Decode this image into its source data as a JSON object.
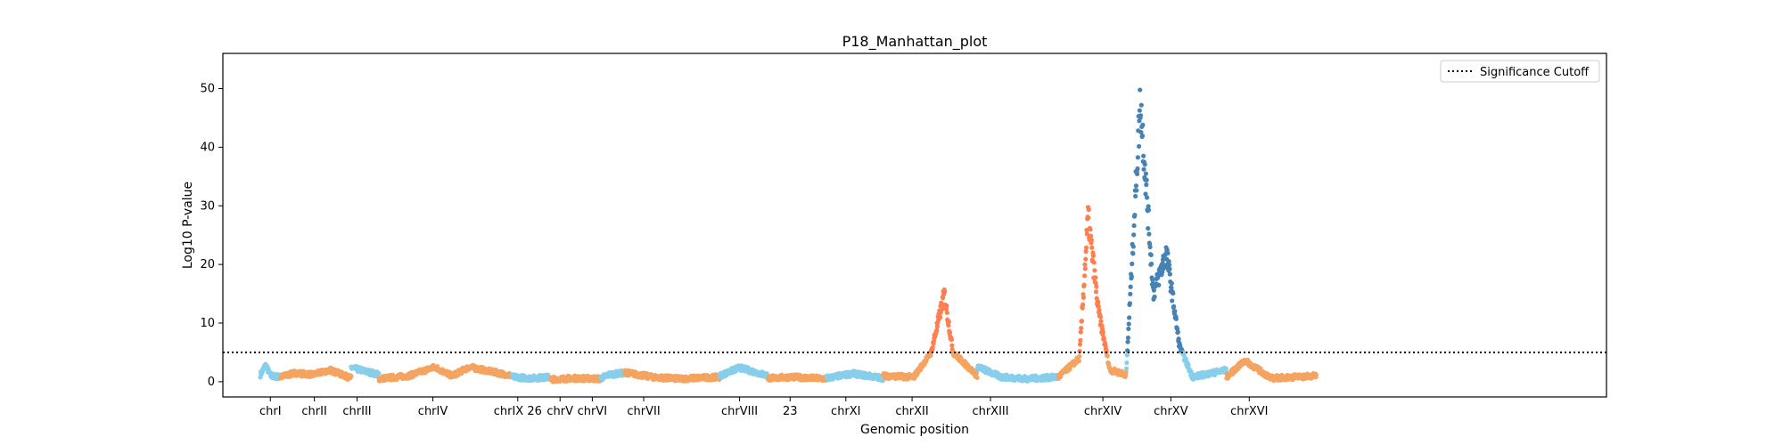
{
  "chart_data": {
    "type": "scatter",
    "title": "P18_Manhattan_plot",
    "xlabel": "Genomic position",
    "ylabel": "Log10 P-value",
    "ylim": [
      -2.6,
      56
    ],
    "xlim": [
      -430,
      15450
    ],
    "yticks": [
      0,
      10,
      20,
      30,
      40,
      50
    ],
    "grid": false,
    "legend": {
      "placement": "top-right",
      "entries": [
        {
          "label": "Significance Cutoff",
          "style": "dotted",
          "color": "#000000"
        }
      ]
    },
    "significance_cutoff": 5,
    "palette": {
      "chr_light_a": "#87CEEB",
      "chr_light_b": "#F4A460",
      "chr_dark_a": "#4682B4",
      "chr_dark_b": "#FF7F50",
      "cutoff_line": "#000000"
    },
    "chromosomes": [
      {
        "label": "chrI",
        "start": 0,
        "end": 230,
        "center": 115,
        "baseline": [
          [
            0,
            1.2
          ],
          [
            60,
            2.8
          ],
          [
            120,
            1.0
          ],
          [
            230,
            0.8
          ]
        ]
      },
      {
        "label": "chrII",
        "start": 230,
        "end": 1043,
        "center": 620,
        "baseline": [
          [
            230,
            0.8
          ],
          [
            400,
            1.5
          ],
          [
            600,
            1.2
          ],
          [
            800,
            2.0
          ],
          [
            1043,
            0.6
          ]
        ]
      },
      {
        "label": "chrIII",
        "start": 1043,
        "end": 1360,
        "center": 1110,
        "baseline": [
          [
            1043,
            2.4
          ],
          [
            1200,
            1.8
          ],
          [
            1360,
            1.2
          ]
        ]
      },
      {
        "label": "chrIV",
        "start": 1360,
        "end": 2890,
        "center": 1980,
        "baseline": [
          [
            1360,
            0.5
          ],
          [
            1700,
            1.0
          ],
          [
            2000,
            2.5
          ],
          [
            2200,
            1.0
          ],
          [
            2400,
            2.5
          ],
          [
            2890,
            1.0
          ]
        ]
      },
      {
        "label": "chrIX 26",
        "start": 2890,
        "end": 3330,
        "center": 2955,
        "baseline": [
          [
            2890,
            0.8
          ],
          [
            3100,
            0.6
          ],
          [
            3330,
            0.8
          ]
        ]
      },
      {
        "label": "chrV",
        "start": 3330,
        "end": 3910,
        "center": 3440,
        "baseline": [
          [
            3330,
            0.4
          ],
          [
            3600,
            0.6
          ],
          [
            3910,
            0.5
          ]
        ]
      },
      {
        "label": "chrVI",
        "start": 3910,
        "end": 4180,
        "center": 3810,
        "baseline": [
          [
            3910,
            0.6
          ],
          [
            4000,
            1.2
          ],
          [
            4180,
            1.5
          ]
        ]
      },
      {
        "label": "chrVII",
        "start": 4180,
        "end": 5270,
        "center": 4400,
        "baseline": [
          [
            4180,
            1.6
          ],
          [
            4500,
            0.8
          ],
          [
            4800,
            0.5
          ],
          [
            5270,
            0.8
          ]
        ]
      },
      {
        "label": "chrVIII",
        "start": 5270,
        "end": 5830,
        "center": 5500,
        "baseline": [
          [
            5270,
            1.0
          ],
          [
            5500,
            2.4
          ],
          [
            5830,
            1.0
          ]
        ]
      },
      {
        "label": "23",
        "start": 5830,
        "end": 6500,
        "center": 6080,
        "baseline": [
          [
            5830,
            0.6
          ],
          [
            6100,
            0.8
          ],
          [
            6500,
            0.5
          ]
        ]
      },
      {
        "label": "chrXI",
        "start": 6500,
        "end": 7150,
        "center": 6720,
        "baseline": [
          [
            6500,
            0.6
          ],
          [
            6800,
            1.4
          ],
          [
            7150,
            0.6
          ]
        ]
      },
      {
        "label": "chrXII",
        "start": 7150,
        "end": 8230,
        "center": 7480,
        "baseline": [
          [
            7150,
            1.0
          ],
          [
            7500,
            0.8
          ],
          [
            7700,
            5.0
          ],
          [
            7850,
            15.0
          ],
          [
            7950,
            5.0
          ],
          [
            8230,
            1.0
          ]
        ]
      },
      {
        "label": "chrXIII",
        "start": 8230,
        "end": 9160,
        "center": 8380,
        "baseline": [
          [
            8230,
            2.6
          ],
          [
            8500,
            0.8
          ],
          [
            8800,
            0.5
          ],
          [
            9160,
            0.8
          ]
        ]
      },
      {
        "label": "chrXIV",
        "start": 9160,
        "end": 9940,
        "center": 9670,
        "baseline": [
          [
            9160,
            0.8
          ],
          [
            9400,
            4.0
          ],
          [
            9500,
            28.0
          ],
          [
            9620,
            12.0
          ],
          [
            9750,
            2.0
          ],
          [
            9940,
            1.2
          ]
        ]
      },
      {
        "label": "chrXV",
        "start": 9940,
        "end": 11090,
        "center": 10450,
        "baseline": [
          [
            9940,
            2.0
          ],
          [
            10100,
            48.0
          ],
          [
            10250,
            15.0
          ],
          [
            10400,
            22.0
          ],
          [
            10550,
            6.0
          ],
          [
            10700,
            0.8
          ],
          [
            11090,
            2.0
          ]
        ]
      },
      {
        "label": "chrXVI",
        "start": 11090,
        "end": 12120,
        "center": 11350,
        "baseline": [
          [
            11090,
            0.8
          ],
          [
            11300,
            3.6
          ],
          [
            11600,
            0.6
          ],
          [
            12120,
            1.0
          ]
        ]
      }
    ]
  }
}
